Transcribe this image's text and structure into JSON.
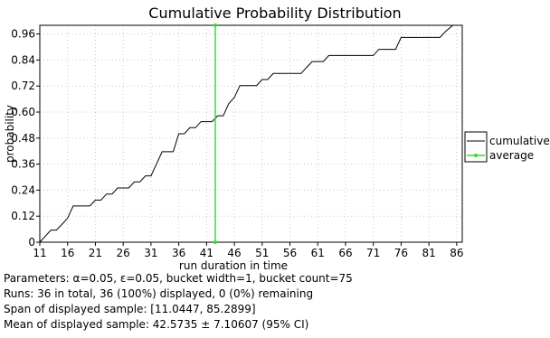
{
  "chart_data": {
    "type": "line",
    "title": "Cumulative Probability Distribution",
    "xlabel": "run duration in time",
    "ylabel": "probability",
    "xlim": [
      11,
      87
    ],
    "ylim": [
      0,
      1.0
    ],
    "x_ticks": [
      11,
      16,
      21,
      26,
      31,
      36,
      41,
      46,
      51,
      56,
      61,
      66,
      71,
      76,
      81,
      86
    ],
    "y_ticks": [
      0,
      0.12,
      0.24,
      0.36,
      0.48,
      0.6,
      0.72,
      0.84,
      0.96
    ],
    "y_tick_labels": [
      "0",
      "0.12",
      "0.24",
      "0.36",
      "0.48",
      "0.60",
      "0.72",
      "0.84",
      "0.96"
    ],
    "grid": true,
    "legend_position": "right",
    "series": [
      {
        "name": "cumulative",
        "color": "#000000",
        "points": [
          [
            11.0,
            0.0
          ],
          [
            12.0,
            0.028
          ],
          [
            13.0,
            0.056
          ],
          [
            14.0,
            0.056
          ],
          [
            15.0,
            0.083
          ],
          [
            16.0,
            0.111
          ],
          [
            17.0,
            0.167
          ],
          [
            18.0,
            0.167
          ],
          [
            19.0,
            0.167
          ],
          [
            20.0,
            0.167
          ],
          [
            21.0,
            0.194
          ],
          [
            22.0,
            0.194
          ],
          [
            23.0,
            0.222
          ],
          [
            24.0,
            0.222
          ],
          [
            25.0,
            0.25
          ],
          [
            26.0,
            0.25
          ],
          [
            27.0,
            0.25
          ],
          [
            28.0,
            0.278
          ],
          [
            29.0,
            0.278
          ],
          [
            30.0,
            0.306
          ],
          [
            31.0,
            0.306
          ],
          [
            32.0,
            0.361
          ],
          [
            33.0,
            0.417
          ],
          [
            34.0,
            0.417
          ],
          [
            35.0,
            0.417
          ],
          [
            36.0,
            0.5
          ],
          [
            37.0,
            0.5
          ],
          [
            38.0,
            0.528
          ],
          [
            39.0,
            0.528
          ],
          [
            40.0,
            0.556
          ],
          [
            41.0,
            0.556
          ],
          [
            42.0,
            0.556
          ],
          [
            43.0,
            0.583
          ],
          [
            44.0,
            0.583
          ],
          [
            45.0,
            0.639
          ],
          [
            46.0,
            0.667
          ],
          [
            47.0,
            0.722
          ],
          [
            48.0,
            0.722
          ],
          [
            49.0,
            0.722
          ],
          [
            50.0,
            0.722
          ],
          [
            51.0,
            0.75
          ],
          [
            52.0,
            0.75
          ],
          [
            53.0,
            0.778
          ],
          [
            54.0,
            0.778
          ],
          [
            55.0,
            0.778
          ],
          [
            56.0,
            0.778
          ],
          [
            57.0,
            0.778
          ],
          [
            58.0,
            0.778
          ],
          [
            59.0,
            0.806
          ],
          [
            60.0,
            0.833
          ],
          [
            61.0,
            0.833
          ],
          [
            62.0,
            0.833
          ],
          [
            63.0,
            0.861
          ],
          [
            64.0,
            0.861
          ],
          [
            65.0,
            0.861
          ],
          [
            66.0,
            0.861
          ],
          [
            67.0,
            0.861
          ],
          [
            68.0,
            0.861
          ],
          [
            69.0,
            0.861
          ],
          [
            70.0,
            0.861
          ],
          [
            71.0,
            0.861
          ],
          [
            72.0,
            0.889
          ],
          [
            73.0,
            0.889
          ],
          [
            74.0,
            0.889
          ],
          [
            75.0,
            0.889
          ],
          [
            76.0,
            0.944
          ],
          [
            77.0,
            0.944
          ],
          [
            78.0,
            0.944
          ],
          [
            79.0,
            0.944
          ],
          [
            80.0,
            0.944
          ],
          [
            81.0,
            0.944
          ],
          [
            82.0,
            0.944
          ],
          [
            83.0,
            0.944
          ],
          [
            84.0,
            0.972
          ],
          [
            85.3,
            1.0
          ]
        ]
      },
      {
        "name": "average",
        "color": "#33dd33",
        "points": [
          [
            42.57,
            0.0
          ],
          [
            42.57,
            1.0
          ]
        ]
      }
    ]
  },
  "legend": {
    "items": [
      {
        "label": "cumulative",
        "color": "#000000",
        "marker": false
      },
      {
        "label": "average",
        "color": "#33dd33",
        "marker": true
      }
    ]
  },
  "info": {
    "parameters": "Parameters: α=0.05, ε=0.05, bucket width=1, bucket count=75",
    "runs": "Runs: 36 in total, 36 (100%) displayed, 0 (0%) remaining",
    "span": "Span of displayed sample: [11.0447, 85.2899]",
    "mean": "Mean of displayed sample: 42.5735 ± 7.10607 (95% CI)"
  }
}
